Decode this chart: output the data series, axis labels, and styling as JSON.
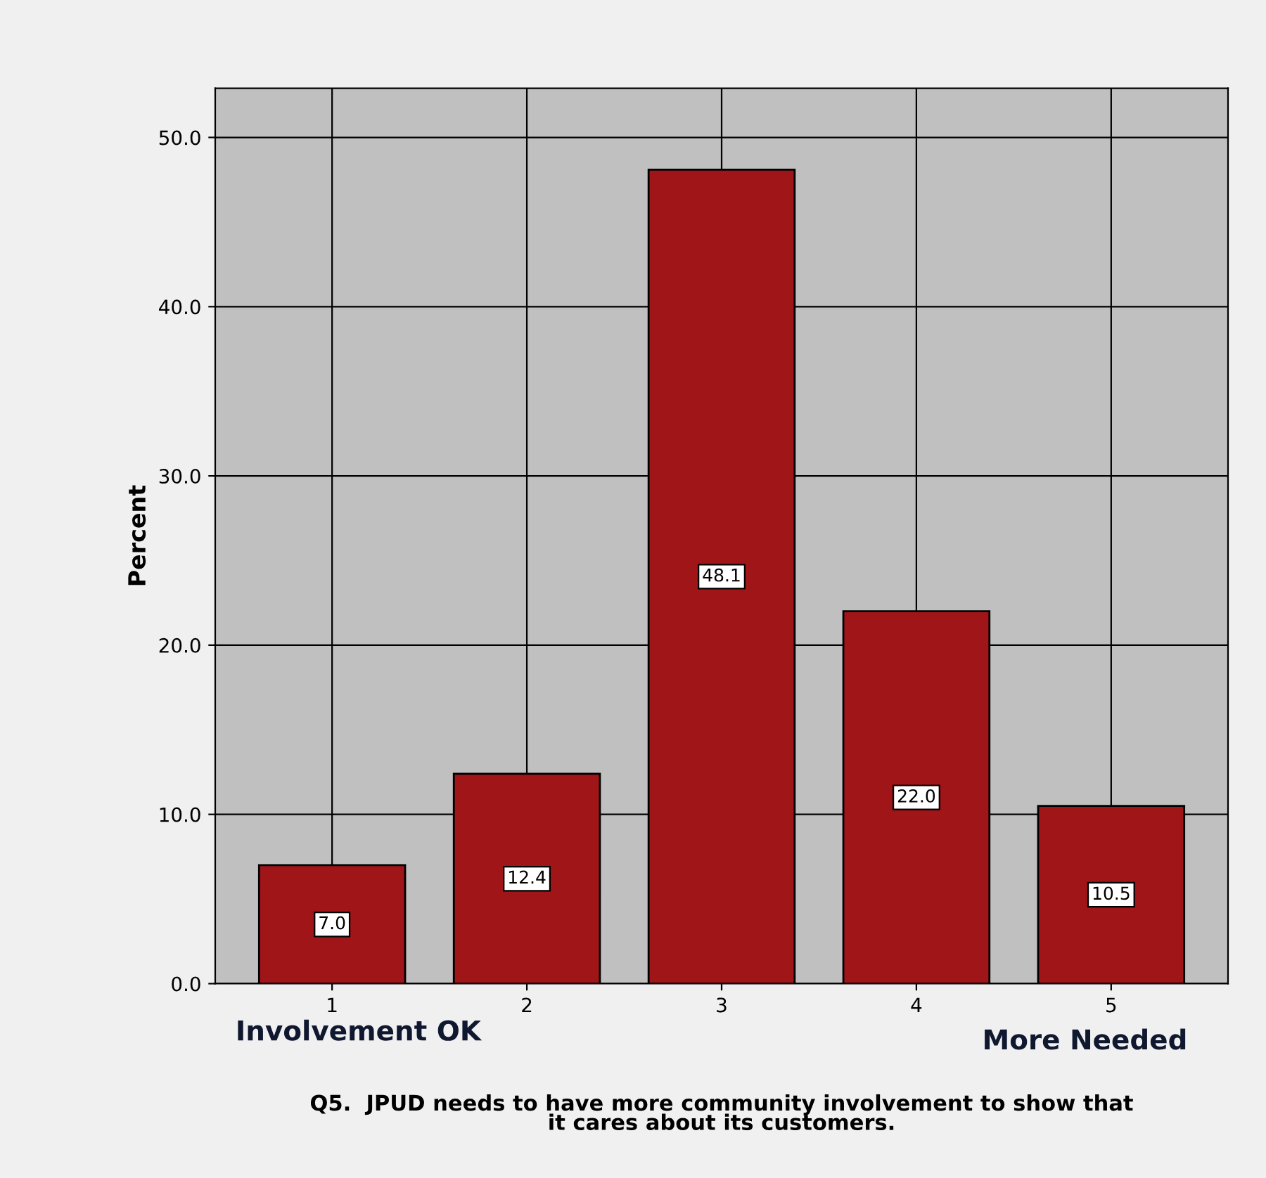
{
  "chart_data": {
    "type": "bar",
    "categories": [
      "1",
      "2",
      "3",
      "4",
      "5"
    ],
    "values": [
      7.0,
      12.4,
      48.1,
      22.0,
      10.5
    ],
    "color": "#a01518",
    "value_labels": [
      "7.0",
      "12.4",
      "48.1",
      "22.0",
      "10.5"
    ],
    "ylabel": "Percent",
    "xlabel": "Q5.  JPUD needs to have more community involvement to show that\nit cares about its customers.",
    "annotations": [
      "Involvement OK",
      "More Needed"
    ],
    "ylim": [
      0,
      52.9
    ],
    "yticks": [
      {
        "value": 0,
        "label": "0.0"
      },
      {
        "value": 10,
        "label": "10.0"
      },
      {
        "value": 20,
        "label": "20.0"
      },
      {
        "value": 30,
        "label": "30.0"
      },
      {
        "value": 40,
        "label": "40.0"
      },
      {
        "value": 50,
        "label": "50.0"
      }
    ],
    "grid": true
  }
}
